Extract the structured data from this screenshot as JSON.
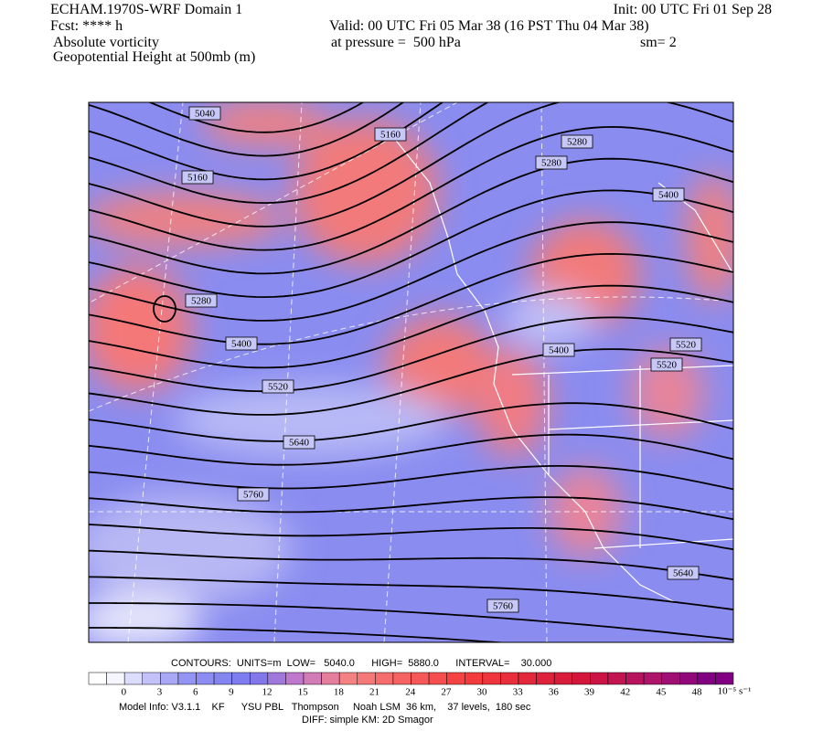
{
  "header": {
    "left": [
      "ECHAM.1970S-WRF Domain 1",
      "Fcst: **** h",
      "Absolute vorticity",
      "Geopotential Height at 500mb (m)"
    ],
    "init": "Init: 00 UTC Fri 01 Sep 28",
    "valid": "Valid: 00 UTC Fri 05 Mar 38 (16 PST Thu 04 Mar 38)",
    "pressure": "at pressure =  500 hPa",
    "sm": "sm= 2"
  },
  "map": {
    "contour_labels": [
      "5040",
      "5160",
      "5160",
      "5280",
      "5280",
      "5280",
      "5400",
      "5400",
      "5400",
      "5520",
      "5520",
      "5520",
      "5640",
      "5640",
      "5760",
      "5760"
    ]
  },
  "footer": {
    "contours": "CONTOURS:  UNITS=m  LOW=   5040.0      HIGH=  5880.0      INTERVAL=    30.000",
    "colorbar": {
      "labels": [
        0,
        3,
        6,
        9,
        12,
        15,
        18,
        21,
        24,
        27,
        30,
        33,
        36,
        39,
        42,
        45,
        48
      ],
      "units": "10⁻⁵ s⁻¹"
    },
    "model_info": "Model Info: V3.1.1    KF      YSU PBL   Thompson     Noah LSM  36 km,    37 levels,  180 sec",
    "diff": "DIFF: simple KM: 2D Smagor"
  }
}
